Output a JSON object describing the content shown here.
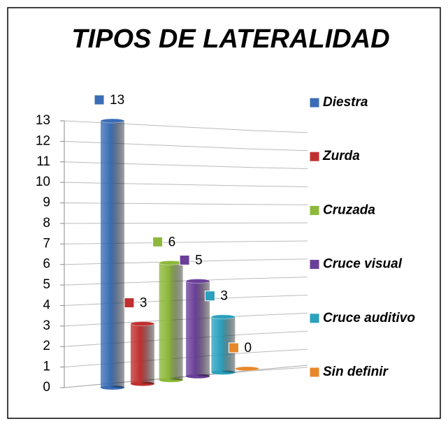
{
  "chart_data": {
    "type": "bar",
    "title": "TIPOS DE LATERALIDAD",
    "categories": [
      "Diestra",
      "Zurda",
      "Cruzada",
      "Cruce visual",
      "Cruce auditivo",
      "Sin definir"
    ],
    "values": [
      13,
      3,
      6,
      5,
      3,
      0
    ],
    "colors": [
      "#3a6db5",
      "#c0302f",
      "#8db83a",
      "#6a3f98",
      "#2aa0bd",
      "#e6882a"
    ],
    "ylim": [
      0,
      13
    ],
    "yticks": [
      0,
      1,
      2,
      3,
      4,
      5,
      6,
      7,
      8,
      9,
      10,
      11,
      12,
      13
    ],
    "grid": true,
    "legend": "right"
  }
}
